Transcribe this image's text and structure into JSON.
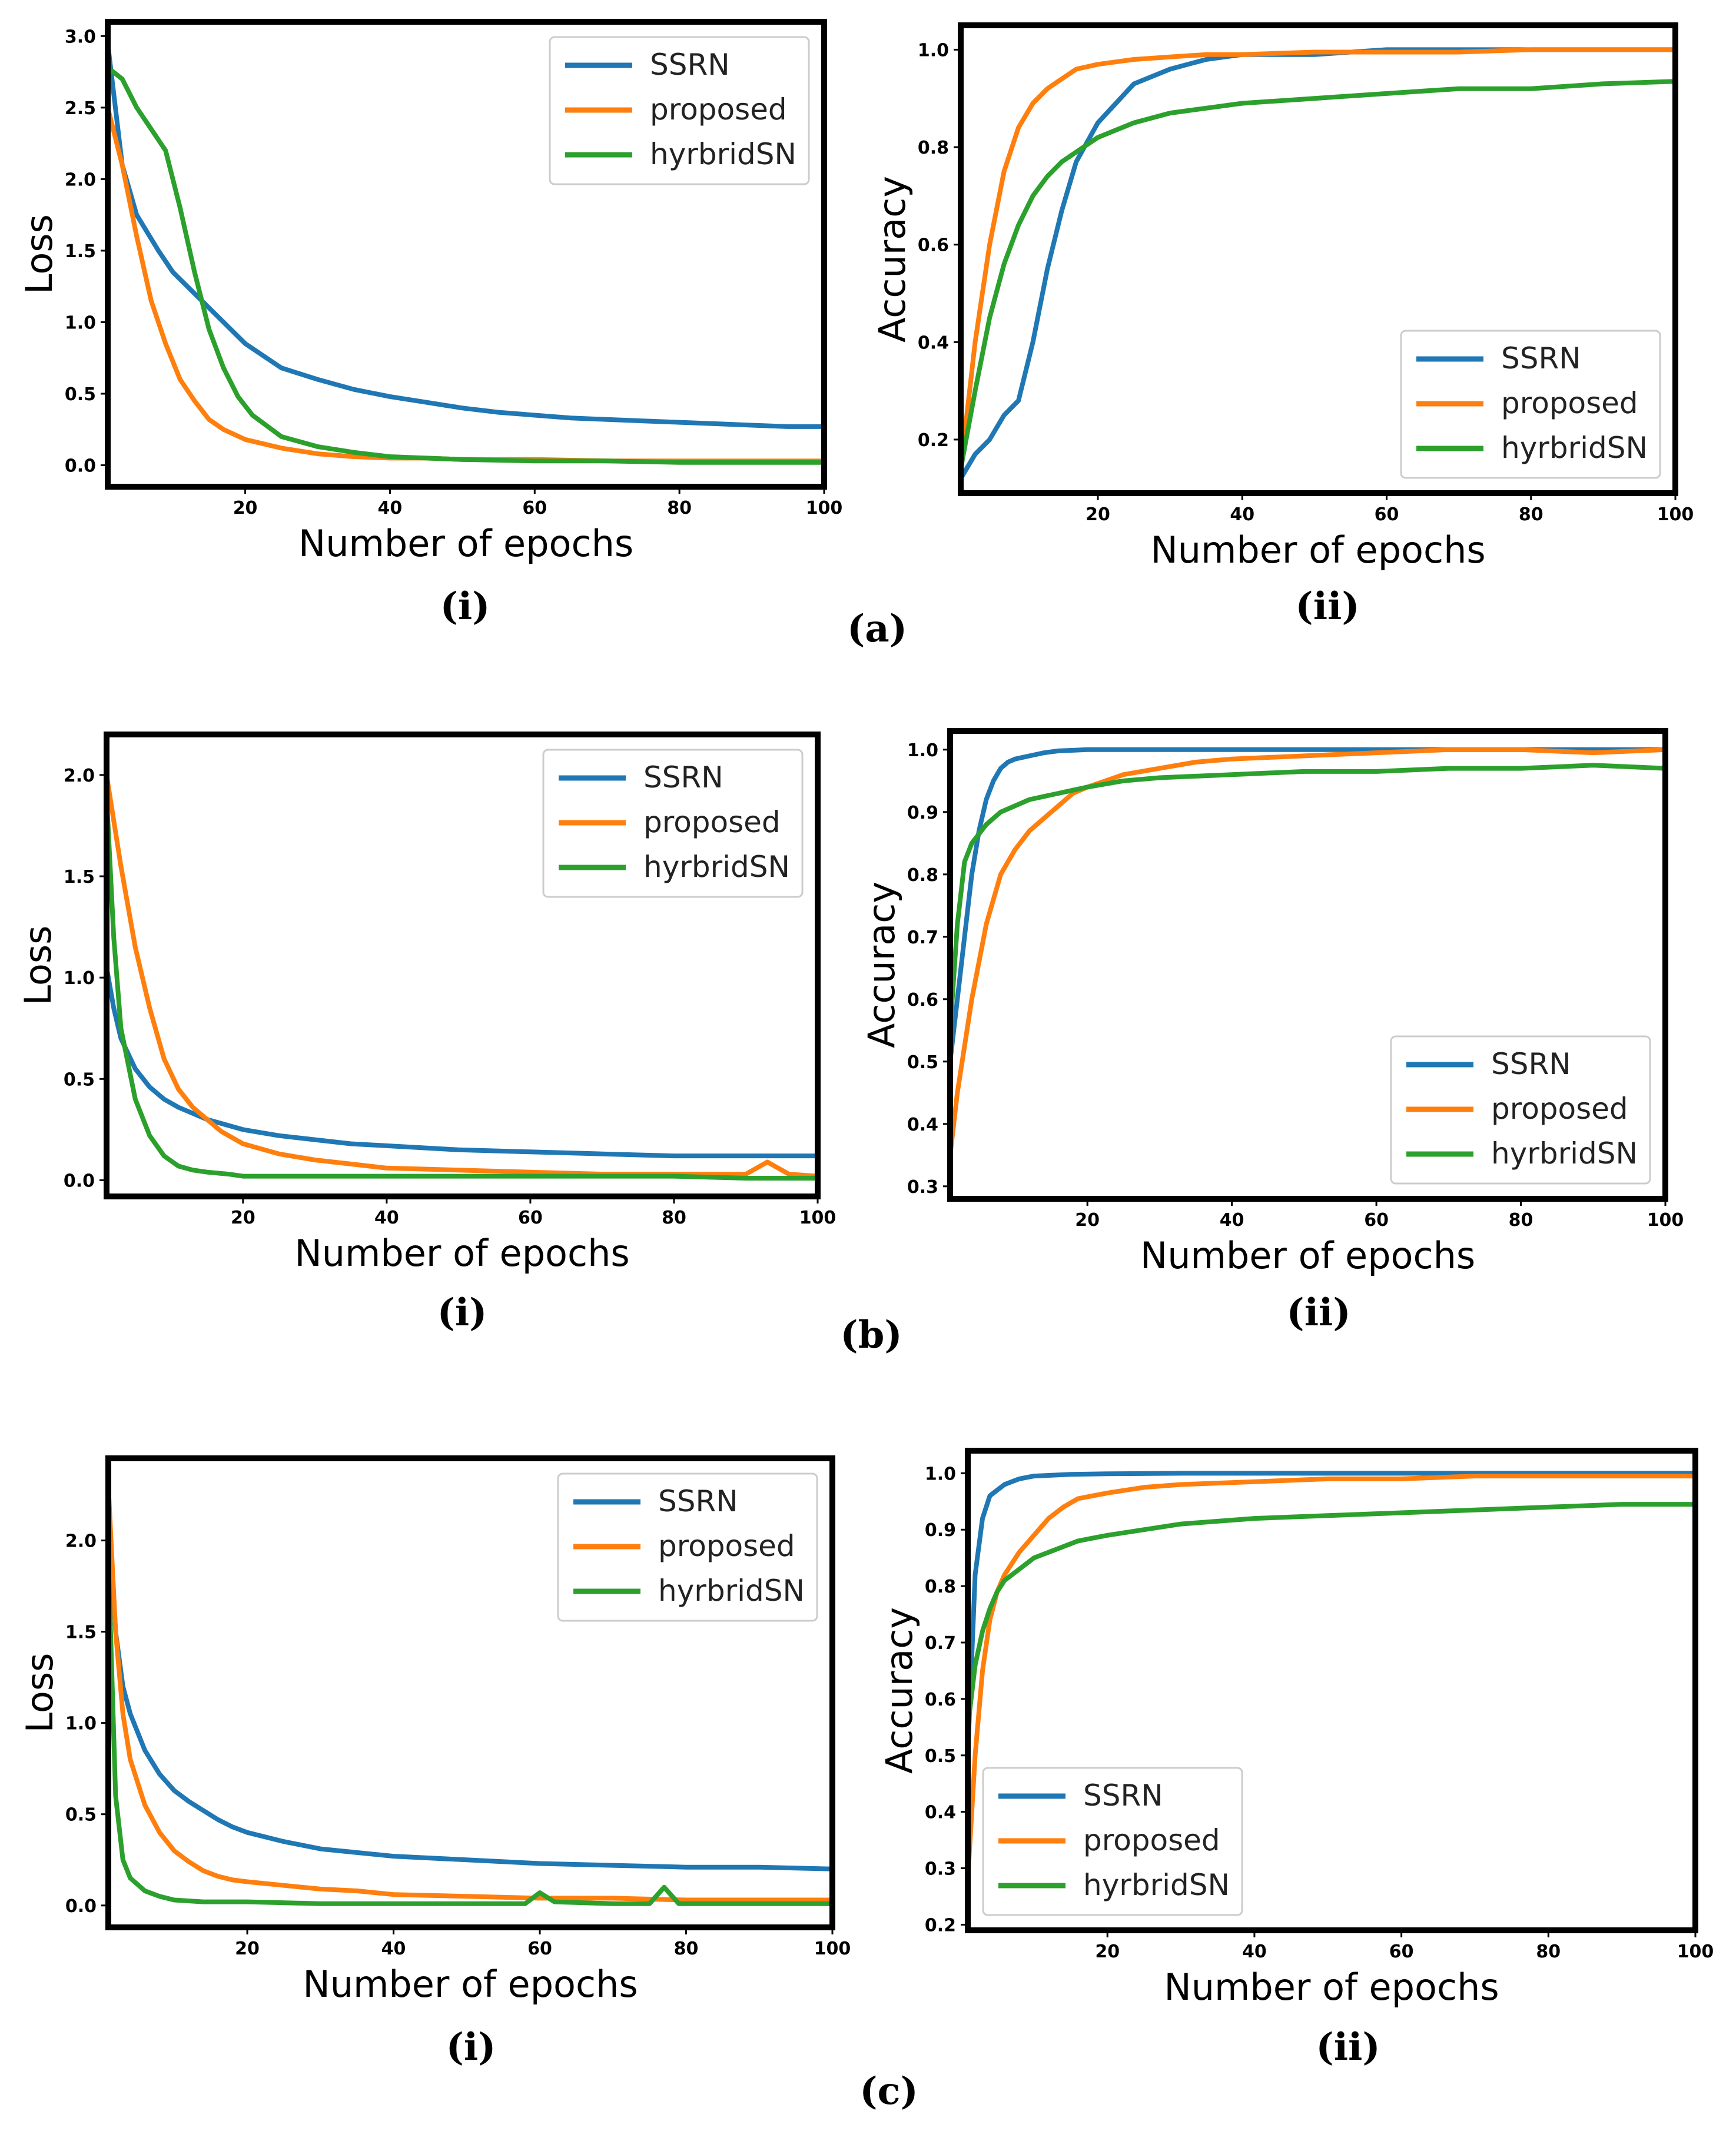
{
  "figure": {
    "panel_labels": [
      "(a)",
      "(b)",
      "(c)"
    ],
    "sub_labels": [
      "(i)",
      "(ii)"
    ]
  },
  "colors": {
    "SSRN": "#1f77b4",
    "proposed": "#ff7f0e",
    "hyrbridSN": "#2ca02c"
  },
  "chart_data": [
    {
      "id": "a-i",
      "type": "line",
      "xlabel": "Number of epochs",
      "ylabel": "Loss",
      "xlim": [
        1,
        100
      ],
      "ylim": [
        -0.15,
        3.1
      ],
      "xticks": [
        20,
        40,
        60,
        80,
        100
      ],
      "yticks": [
        0.0,
        0.5,
        1.0,
        1.5,
        2.0,
        2.5,
        3.0
      ],
      "ytick_labels": [
        "0.0",
        "0.5",
        "1.0",
        "1.5",
        "2.0",
        "2.5",
        "3.0"
      ],
      "legend_position": "top-right",
      "series": [
        {
          "name": "SSRN",
          "color": "#1f77b4",
          "x": [
            1,
            3,
            5,
            8,
            10,
            12,
            15,
            18,
            20,
            25,
            30,
            35,
            40,
            45,
            50,
            55,
            60,
            65,
            70,
            75,
            80,
            85,
            90,
            95,
            100
          ],
          "y": [
            2.95,
            2.1,
            1.75,
            1.5,
            1.35,
            1.25,
            1.1,
            0.95,
            0.85,
            0.68,
            0.6,
            0.53,
            0.48,
            0.44,
            0.4,
            0.37,
            0.35,
            0.33,
            0.32,
            0.31,
            0.3,
            0.29,
            0.28,
            0.27,
            0.27
          ]
        },
        {
          "name": "proposed",
          "color": "#ff7f0e",
          "x": [
            1,
            3,
            5,
            7,
            9,
            11,
            13,
            15,
            17,
            20,
            25,
            30,
            35,
            40,
            45,
            50,
            55,
            60,
            70,
            80,
            90,
            100
          ],
          "y": [
            2.5,
            2.1,
            1.6,
            1.15,
            0.85,
            0.6,
            0.45,
            0.32,
            0.25,
            0.18,
            0.12,
            0.08,
            0.06,
            0.05,
            0.05,
            0.04,
            0.04,
            0.04,
            0.03,
            0.03,
            0.03,
            0.03
          ]
        },
        {
          "name": "hyrbridSN",
          "color": "#2ca02c",
          "x": [
            1,
            3,
            5,
            7,
            9,
            11,
            13,
            15,
            17,
            19,
            21,
            25,
            30,
            35,
            40,
            45,
            50,
            60,
            70,
            80,
            90,
            100
          ],
          "y": [
            2.78,
            2.7,
            2.5,
            2.35,
            2.2,
            1.8,
            1.35,
            0.95,
            0.68,
            0.48,
            0.35,
            0.2,
            0.13,
            0.09,
            0.06,
            0.05,
            0.04,
            0.03,
            0.03,
            0.02,
            0.02,
            0.02
          ]
        }
      ]
    },
    {
      "id": "a-ii",
      "type": "line",
      "xlabel": "Number of epochs",
      "ylabel": "Accuracy",
      "xlim": [
        1,
        100
      ],
      "ylim": [
        0.09,
        1.05
      ],
      "xticks": [
        20,
        40,
        60,
        80,
        100
      ],
      "yticks": [
        0.2,
        0.4,
        0.6,
        0.8,
        1.0
      ],
      "ytick_labels": [
        "0.2",
        "0.4",
        "0.6",
        "0.8",
        "1.0"
      ],
      "legend_position": "bottom-right",
      "series": [
        {
          "name": "SSRN",
          "color": "#1f77b4",
          "x": [
            1,
            3,
            5,
            7,
            9,
            11,
            13,
            15,
            17,
            20,
            25,
            30,
            35,
            40,
            50,
            60,
            70,
            80,
            90,
            100
          ],
          "y": [
            0.12,
            0.17,
            0.2,
            0.25,
            0.28,
            0.4,
            0.55,
            0.67,
            0.77,
            0.85,
            0.93,
            0.96,
            0.98,
            0.99,
            0.99,
            1.0,
            1.0,
            1.0,
            1.0,
            1.0
          ]
        },
        {
          "name": "proposed",
          "color": "#ff7f0e",
          "x": [
            1,
            3,
            5,
            7,
            9,
            11,
            13,
            15,
            17,
            20,
            25,
            30,
            35,
            40,
            50,
            60,
            70,
            80,
            90,
            100
          ],
          "y": [
            0.14,
            0.4,
            0.6,
            0.75,
            0.84,
            0.89,
            0.92,
            0.94,
            0.96,
            0.97,
            0.98,
            0.985,
            0.99,
            0.99,
            0.995,
            0.995,
            0.995,
            1.0,
            1.0,
            1.0
          ]
        },
        {
          "name": "hyrbridSN",
          "color": "#2ca02c",
          "x": [
            1,
            3,
            5,
            7,
            9,
            11,
            13,
            15,
            17,
            20,
            25,
            30,
            35,
            40,
            50,
            60,
            70,
            80,
            90,
            100
          ],
          "y": [
            0.14,
            0.3,
            0.45,
            0.56,
            0.64,
            0.7,
            0.74,
            0.77,
            0.79,
            0.82,
            0.85,
            0.87,
            0.88,
            0.89,
            0.9,
            0.91,
            0.92,
            0.92,
            0.93,
            0.935
          ]
        }
      ]
    },
    {
      "id": "b-i",
      "type": "line",
      "xlabel": "Number of epochs",
      "ylabel": "Loss",
      "xlim": [
        1,
        100
      ],
      "ylim": [
        -0.08,
        2.2
      ],
      "xticks": [
        20,
        40,
        60,
        80,
        100
      ],
      "yticks": [
        0.0,
        0.5,
        1.0,
        1.5,
        2.0
      ],
      "ytick_labels": [
        "0.0",
        "0.5",
        "1.0",
        "1.5",
        "2.0"
      ],
      "legend_position": "top-right",
      "series": [
        {
          "name": "SSRN",
          "color": "#1f77b4",
          "x": [
            1,
            2,
            3,
            5,
            7,
            9,
            11,
            13,
            15,
            18,
            20,
            25,
            30,
            35,
            40,
            50,
            60,
            70,
            80,
            90,
            100
          ],
          "y": [
            1.05,
            0.85,
            0.7,
            0.55,
            0.46,
            0.4,
            0.36,
            0.33,
            0.3,
            0.27,
            0.25,
            0.22,
            0.2,
            0.18,
            0.17,
            0.15,
            0.14,
            0.13,
            0.12,
            0.12,
            0.12
          ]
        },
        {
          "name": "proposed",
          "color": "#ff7f0e",
          "x": [
            1,
            3,
            5,
            7,
            9,
            11,
            13,
            15,
            17,
            20,
            25,
            30,
            35,
            40,
            50,
            60,
            70,
            80,
            90,
            93,
            96,
            100
          ],
          "y": [
            2.0,
            1.55,
            1.15,
            0.85,
            0.6,
            0.45,
            0.36,
            0.3,
            0.24,
            0.18,
            0.13,
            0.1,
            0.08,
            0.06,
            0.05,
            0.04,
            0.03,
            0.03,
            0.03,
            0.09,
            0.03,
            0.02
          ]
        },
        {
          "name": "hyrbridSN",
          "color": "#2ca02c",
          "x": [
            1,
            2,
            3,
            5,
            7,
            9,
            11,
            13,
            15,
            18,
            20,
            30,
            40,
            50,
            60,
            70,
            80,
            90,
            100
          ],
          "y": [
            1.9,
            1.2,
            0.75,
            0.4,
            0.22,
            0.12,
            0.07,
            0.05,
            0.04,
            0.03,
            0.02,
            0.02,
            0.02,
            0.02,
            0.02,
            0.02,
            0.02,
            0.01,
            0.01
          ]
        }
      ]
    },
    {
      "id": "b-ii",
      "type": "line",
      "xlabel": "Number of epochs",
      "ylabel": "Accuracy",
      "xlim": [
        1,
        100
      ],
      "ylim": [
        0.28,
        1.03
      ],
      "xticks": [
        20,
        40,
        60,
        80,
        100
      ],
      "yticks": [
        0.3,
        0.4,
        0.5,
        0.6,
        0.7,
        0.8,
        0.9,
        1.0
      ],
      "ytick_labels": [
        "0.3",
        "0.4",
        "0.5",
        "0.6",
        "0.7",
        "0.8",
        "0.9",
        "1.0"
      ],
      "legend_position": "bottom-right",
      "series": [
        {
          "name": "SSRN",
          "color": "#1f77b4",
          "x": [
            1,
            2,
            3,
            4,
            5,
            6,
            7,
            8,
            9,
            10,
            12,
            14,
            16,
            18,
            20,
            30,
            40,
            60,
            80,
            100
          ],
          "y": [
            0.5,
            0.6,
            0.7,
            0.8,
            0.87,
            0.92,
            0.95,
            0.97,
            0.98,
            0.985,
            0.99,
            0.995,
            0.998,
            0.999,
            1.0,
            1.0,
            1.0,
            1.0,
            1.0,
            1.0
          ]
        },
        {
          "name": "proposed",
          "color": "#ff7f0e",
          "x": [
            1,
            2,
            4,
            6,
            8,
            10,
            12,
            14,
            16,
            18,
            20,
            25,
            30,
            35,
            40,
            50,
            60,
            70,
            80,
            90,
            100
          ],
          "y": [
            0.35,
            0.45,
            0.6,
            0.72,
            0.8,
            0.84,
            0.87,
            0.89,
            0.91,
            0.93,
            0.94,
            0.96,
            0.97,
            0.98,
            0.985,
            0.99,
            0.995,
            1.0,
            1.0,
            0.995,
            1.0
          ]
        },
        {
          "name": "hyrbridSN",
          "color": "#2ca02c",
          "x": [
            1,
            2,
            3,
            4,
            6,
            8,
            10,
            12,
            14,
            16,
            18,
            20,
            25,
            30,
            40,
            50,
            60,
            70,
            80,
            90,
            100
          ],
          "y": [
            0.55,
            0.72,
            0.82,
            0.85,
            0.88,
            0.9,
            0.91,
            0.92,
            0.925,
            0.93,
            0.935,
            0.94,
            0.95,
            0.955,
            0.96,
            0.965,
            0.965,
            0.97,
            0.97,
            0.975,
            0.97
          ]
        }
      ]
    },
    {
      "id": "c-i",
      "type": "line",
      "xlabel": "Number of epochs",
      "ylabel": "Loss",
      "xlim": [
        1,
        100
      ],
      "ylim": [
        -0.12,
        2.45
      ],
      "xticks": [
        20,
        40,
        60,
        80,
        100
      ],
      "yticks": [
        0.0,
        0.5,
        1.0,
        1.5,
        2.0
      ],
      "ytick_labels": [
        "0.0",
        "0.5",
        "1.0",
        "1.5",
        "2.0"
      ],
      "legend_position": "top-right",
      "series": [
        {
          "name": "SSRN",
          "color": "#1f77b4",
          "x": [
            1,
            2,
            3,
            4,
            6,
            8,
            10,
            12,
            14,
            16,
            18,
            20,
            25,
            30,
            35,
            40,
            50,
            60,
            70,
            80,
            90,
            100
          ],
          "y": [
            2.25,
            1.5,
            1.2,
            1.05,
            0.85,
            0.72,
            0.63,
            0.57,
            0.52,
            0.47,
            0.43,
            0.4,
            0.35,
            0.31,
            0.29,
            0.27,
            0.25,
            0.23,
            0.22,
            0.21,
            0.21,
            0.2
          ]
        },
        {
          "name": "proposed",
          "color": "#ff7f0e",
          "x": [
            1,
            2,
            3,
            4,
            6,
            8,
            10,
            12,
            14,
            16,
            18,
            20,
            25,
            30,
            35,
            40,
            50,
            60,
            70,
            80,
            90,
            100
          ],
          "y": [
            2.3,
            1.5,
            1.05,
            0.8,
            0.55,
            0.4,
            0.3,
            0.24,
            0.19,
            0.16,
            0.14,
            0.13,
            0.11,
            0.09,
            0.08,
            0.06,
            0.05,
            0.04,
            0.04,
            0.03,
            0.03,
            0.03
          ]
        },
        {
          "name": "hyrbridSN",
          "color": "#2ca02c",
          "x": [
            1,
            2,
            3,
            4,
            6,
            8,
            10,
            14,
            20,
            30,
            40,
            50,
            58,
            60,
            62,
            70,
            75,
            77,
            79,
            90,
            100
          ],
          "y": [
            1.9,
            0.6,
            0.25,
            0.15,
            0.08,
            0.05,
            0.03,
            0.02,
            0.02,
            0.01,
            0.01,
            0.01,
            0.01,
            0.07,
            0.02,
            0.01,
            0.01,
            0.1,
            0.01,
            0.01,
            0.01
          ]
        }
      ]
    },
    {
      "id": "c-ii",
      "type": "line",
      "xlabel": "Number of epochs",
      "ylabel": "Accuracy",
      "xlim": [
        1,
        100
      ],
      "ylim": [
        0.19,
        1.04
      ],
      "xticks": [
        20,
        40,
        60,
        80,
        100
      ],
      "yticks": [
        0.2,
        0.3,
        0.4,
        0.5,
        0.6,
        0.7,
        0.8,
        0.9,
        1.0
      ],
      "ytick_labels": [
        "0.2",
        "0.3",
        "0.4",
        "0.5",
        "0.6",
        "0.7",
        "0.8",
        "0.9",
        "1.0"
      ],
      "legend_position": "lower-left",
      "series": [
        {
          "name": "SSRN",
          "color": "#1f77b4",
          "x": [
            1,
            2,
            3,
            4,
            5,
            6,
            8,
            10,
            15,
            20,
            30,
            40,
            50,
            60,
            70,
            80,
            90,
            100
          ],
          "y": [
            0.5,
            0.82,
            0.92,
            0.96,
            0.97,
            0.98,
            0.99,
            0.995,
            0.998,
            0.999,
            1.0,
            1.0,
            1.0,
            1.0,
            1.0,
            1.0,
            1.0,
            1.0
          ]
        },
        {
          "name": "proposed",
          "color": "#ff7f0e",
          "x": [
            1,
            2,
            3,
            4,
            5,
            6,
            8,
            10,
            12,
            14,
            16,
            18,
            20,
            25,
            30,
            40,
            50,
            60,
            70,
            80,
            90,
            100
          ],
          "y": [
            0.28,
            0.5,
            0.65,
            0.74,
            0.79,
            0.82,
            0.86,
            0.89,
            0.92,
            0.94,
            0.955,
            0.96,
            0.965,
            0.975,
            0.98,
            0.985,
            0.99,
            0.99,
            0.995,
            0.995,
            0.995,
            0.995
          ]
        },
        {
          "name": "hyrbridSN",
          "color": "#2ca02c",
          "x": [
            1,
            2,
            3,
            4,
            5,
            6,
            8,
            10,
            12,
            14,
            16,
            18,
            20,
            25,
            30,
            40,
            50,
            60,
            70,
            80,
            90,
            100
          ],
          "y": [
            0.55,
            0.66,
            0.72,
            0.76,
            0.79,
            0.81,
            0.83,
            0.85,
            0.86,
            0.87,
            0.88,
            0.885,
            0.89,
            0.9,
            0.91,
            0.92,
            0.925,
            0.93,
            0.935,
            0.94,
            0.945,
            0.945
          ]
        }
      ]
    }
  ]
}
